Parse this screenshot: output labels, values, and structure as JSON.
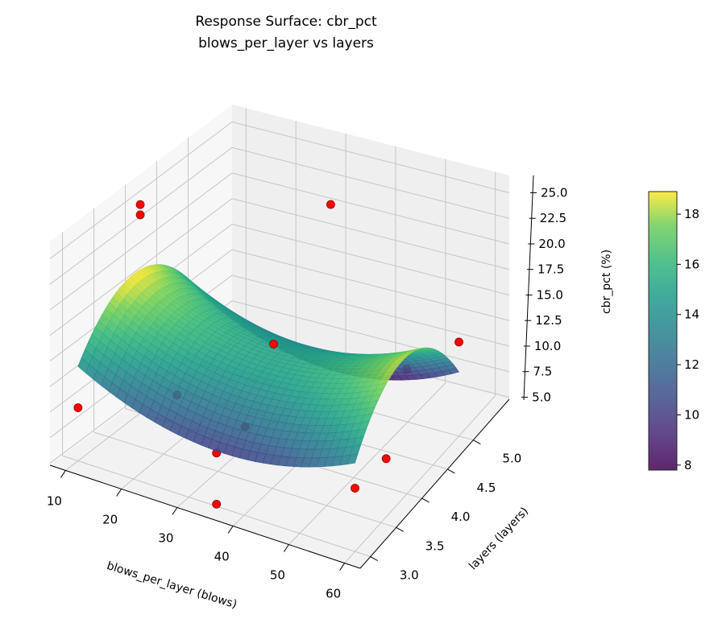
{
  "chart_data": {
    "type": "surface",
    "title": [
      "Response Surface: cbr_pct",
      "blows_per_layer vs layers"
    ],
    "xlabel": "blows_per_layer (blows)",
    "ylabel": "layers (layers)",
    "zlabel": "cbr_pct (%)",
    "xlim": [
      7.2,
      62.8
    ],
    "ylim": [
      2.8,
      5.7
    ],
    "zlim": [
      4.8,
      26.7
    ],
    "xticks": [
      "10",
      "20",
      "30",
      "40",
      "50",
      "60"
    ],
    "yticks": [
      "3.0",
      "3.5",
      "4.0",
      "4.5",
      "5.0"
    ],
    "zticks": [
      "5.0",
      "7.5",
      "10.0",
      "12.5",
      "15.0",
      "17.5",
      "20.0",
      "22.5",
      "25.0"
    ],
    "grid": true,
    "colormap": "viridis",
    "colorbar": {
      "range": [
        7.8,
        18.9
      ],
      "ticks": [
        "8",
        "10",
        "12",
        "14",
        "16",
        "18"
      ],
      "placement": "right"
    },
    "surface": {
      "x": [
        10,
        22.5,
        35,
        47.5,
        60
      ],
      "y": [
        3.0,
        3.5,
        4.0,
        4.5,
        5.0
      ],
      "z": [
        [
          14.04,
          11.24,
          10.21,
          10.95,
          13.47
        ],
        [
          17.94,
          15.14,
          14.11,
          14.85,
          17.37
        ],
        [
          18.84,
          16.04,
          15.01,
          15.75,
          18.27
        ],
        [
          16.74,
          13.94,
          12.91,
          13.65,
          16.17
        ],
        [
          11.64,
          8.84,
          7.81,
          8.55,
          11.07
        ]
      ]
    },
    "points": {
      "color": "#ff0000",
      "data": [
        [
          10,
          4.0,
          25.2
        ],
        [
          10,
          4.0,
          24.2
        ],
        [
          35,
          5.0,
          24.0
        ],
        [
          35,
          4.0,
          15.5
        ],
        [
          60,
          4.0,
          17.0
        ],
        [
          60,
          5.0,
          14.0
        ],
        [
          35,
          4.5,
          12.0
        ],
        [
          60,
          3.0,
          11.0
        ],
        [
          60,
          3.6,
          10.5
        ],
        [
          10,
          3.0,
          10.0
        ],
        [
          35,
          3.0,
          10.0
        ],
        [
          22.5,
          3.5,
          11.0
        ],
        [
          35,
          3.5,
          10.0
        ],
        [
          35,
          3.0,
          5.0
        ]
      ]
    }
  }
}
